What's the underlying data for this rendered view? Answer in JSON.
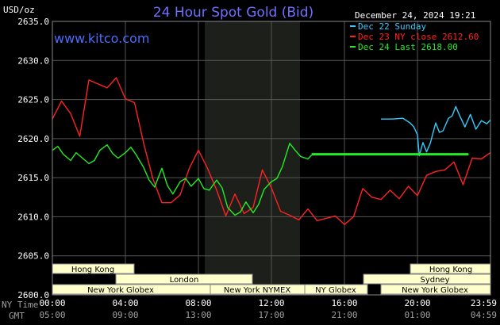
{
  "header": {
    "unit": "USD/oz",
    "title": "24 Hour Spot Gold (Bid)",
    "timestamp": "December 24, 2024 19:21",
    "website": "www.kitco.com"
  },
  "legend": [
    {
      "label": "Dec 22 Sunday",
      "color": "#33ccff"
    },
    {
      "label": "Dec 23 NY close 2612.60",
      "color": "#ff2222"
    },
    {
      "label": "Dec 24 Last 2618.00",
      "color": "#22ee22"
    }
  ],
  "sessions": [
    {
      "label": "Hong Kong",
      "row": 0
    },
    {
      "label": "Hong Kong",
      "row": 0
    },
    {
      "label": "London",
      "row": 1
    },
    {
      "label": "Sydney",
      "row": 1
    },
    {
      "label": "New York Globex",
      "row": 2
    },
    {
      "label": "New York NYMEX",
      "row": 2
    },
    {
      "label": "NY Globex",
      "row": 2
    },
    {
      "label": "New York Globex",
      "row": 2
    }
  ],
  "x_axis": {
    "ny_label": "NY Time",
    "gmt_label": "GMT",
    "ny_ticks": [
      "00:00",
      "04:00",
      "08:00",
      "12:00",
      "16:00",
      "20:00",
      "23:59"
    ],
    "gmt_ticks": [
      "05:00",
      "09:00",
      "13:00",
      "17:00",
      "21:00",
      "01:00",
      "04:59"
    ]
  },
  "chart_data": {
    "type": "line",
    "title": "24 Hour Spot Gold (Bid)",
    "ylabel": "USD/oz",
    "ylim": [
      2600,
      2635
    ],
    "y_ticks": [
      "2600.0",
      "2605.0",
      "2610.0",
      "2615.0",
      "2620.0",
      "2625.0",
      "2630.0",
      "2635.0"
    ],
    "x_unit": "hours (NY time)",
    "xlim": [
      0,
      24
    ],
    "grid": true,
    "legend_position": "top-right",
    "series": [
      {
        "name": "Dec 22 Sunday",
        "color": "#33ccff",
        "x": [
          18.0,
          18.6,
          19.2,
          19.6,
          19.8,
          20.0,
          20.1,
          20.3,
          20.5,
          20.7,
          21.0,
          21.2,
          21.4,
          21.7,
          21.9,
          22.1,
          22.3,
          22.6,
          22.9,
          23.2,
          23.5,
          23.8,
          24.0
        ],
        "y": [
          2622.5,
          2622.5,
          2622.6,
          2622.0,
          2621.5,
          2620.5,
          2617.8,
          2619.5,
          2618.3,
          2619.4,
          2622.0,
          2620.8,
          2621.0,
          2622.6,
          2622.9,
          2624.1,
          2623.0,
          2621.5,
          2623.1,
          2621.2,
          2622.3,
          2621.9,
          2622.4
        ]
      },
      {
        "name": "Dec 23 NY close 2612.60",
        "color": "#ff2222",
        "x": [
          0.0,
          0.5,
          1.0,
          1.5,
          2.0,
          2.5,
          3.0,
          3.5,
          4.0,
          4.5,
          5.0,
          5.5,
          6.0,
          6.5,
          7.0,
          7.5,
          8.0,
          8.5,
          9.0,
          9.5,
          10.0,
          10.5,
          11.0,
          11.5,
          12.0,
          12.5,
          13.0,
          13.5,
          14.0,
          14.5,
          15.0,
          15.5,
          16.0,
          16.5,
          17.0,
          17.5,
          18.0,
          18.5,
          19.0,
          19.5,
          20.0,
          20.5,
          21.0,
          21.5,
          22.0,
          22.5,
          23.0,
          23.5,
          24.0
        ],
        "y": [
          2622.5,
          2624.8,
          2623.2,
          2620.3,
          2627.5,
          2627.0,
          2626.5,
          2627.8,
          2625.1,
          2624.6,
          2619.4,
          2614.9,
          2611.8,
          2611.8,
          2612.8,
          2616.2,
          2618.5,
          2616.2,
          2613.4,
          2610.1,
          2612.9,
          2610.4,
          2611.2,
          2616.0,
          2613.7,
          2610.7,
          2610.2,
          2609.6,
          2611.0,
          2609.5,
          2609.8,
          2610.1,
          2609.0,
          2610.0,
          2613.6,
          2612.5,
          2612.2,
          2613.4,
          2612.3,
          2613.9,
          2612.7,
          2615.3,
          2615.8,
          2616.0,
          2617.0,
          2614.1,
          2617.5,
          2617.4,
          2618.2
        ]
      },
      {
        "name": "Dec 24 Last 2618.00",
        "color": "#22ee22",
        "x": [
          0.0,
          0.3,
          0.6,
          1.0,
          1.3,
          1.6,
          2.0,
          2.3,
          2.6,
          3.0,
          3.3,
          3.6,
          4.0,
          4.3,
          4.6,
          5.0,
          5.3,
          5.6,
          6.0,
          6.3,
          6.6,
          7.0,
          7.3,
          7.6,
          8.0,
          8.3,
          8.6,
          9.0,
          9.3,
          9.6,
          10.0,
          10.3,
          10.6,
          11.0,
          11.3,
          11.6,
          12.0,
          12.3,
          12.6,
          13.0,
          13.3,
          13.6,
          14.0,
          14.2
        ],
        "y": [
          2618.5,
          2619.0,
          2618.0,
          2617.2,
          2618.2,
          2617.6,
          2616.8,
          2617.2,
          2618.5,
          2619.2,
          2618.1,
          2617.5,
          2618.2,
          2618.9,
          2617.9,
          2616.3,
          2614.7,
          2613.8,
          2616.2,
          2614.0,
          2612.9,
          2614.5,
          2614.9,
          2613.9,
          2614.9,
          2613.6,
          2613.4,
          2614.7,
          2613.7,
          2611.2,
          2610.2,
          2610.6,
          2611.9,
          2610.5,
          2611.6,
          2613.5,
          2614.5,
          2614.9,
          2616.4,
          2619.4,
          2618.5,
          2617.7,
          2617.4,
          2617.9
        ]
      },
      {
        "name": "Dec 24 Last",
        "color": "#22ee22",
        "x": [
          14.2,
          22.8
        ],
        "y": [
          2618.0,
          2618.0
        ]
      }
    ]
  }
}
